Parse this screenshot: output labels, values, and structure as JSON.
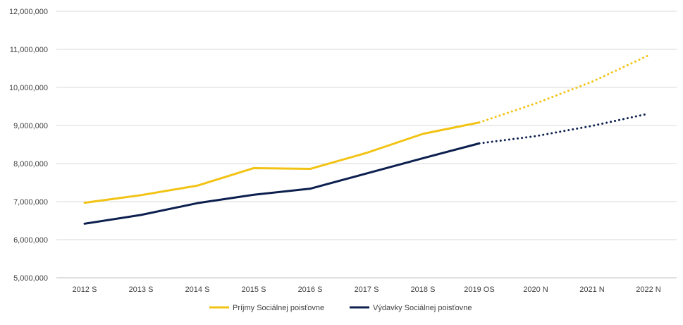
{
  "chart_data": {
    "type": "line",
    "title": "",
    "xlabel": "",
    "ylabel": "",
    "categories": [
      "2012 S",
      "2013 S",
      "2014 S",
      "2015 S",
      "2016 S",
      "2017 S",
      "2018 S",
      "2019 OS",
      "2020 N",
      "2021 N",
      "2022 N"
    ],
    "ylim": [
      5000000,
      12000000
    ],
    "y_ticks": [
      5000000,
      6000000,
      7000000,
      8000000,
      9000000,
      10000000,
      11000000,
      12000000
    ],
    "y_tick_labels": [
      "5,000,000",
      "6,000,000",
      "7,000,000",
      "8,000,000",
      "9,000,000",
      "10,000,000",
      "11,000,000",
      "12,000,000"
    ],
    "grid": true,
    "legend_position": "bottom",
    "forecast_start_index": 7,
    "series": [
      {
        "name": "Príjmy Sociálnej poisťovne",
        "color": "#F2C314",
        "values": [
          6970000,
          7170000,
          7420000,
          7880000,
          7860000,
          8280000,
          8780000,
          9080000,
          9580000,
          10150000,
          10840000
        ]
      },
      {
        "name": "Výdavky Sociálnej poisťovne",
        "color": "#0C1F4E",
        "values": [
          6420000,
          6650000,
          6960000,
          7180000,
          7340000,
          7740000,
          8140000,
          8530000,
          8720000,
          8990000,
          9310000
        ]
      }
    ]
  }
}
